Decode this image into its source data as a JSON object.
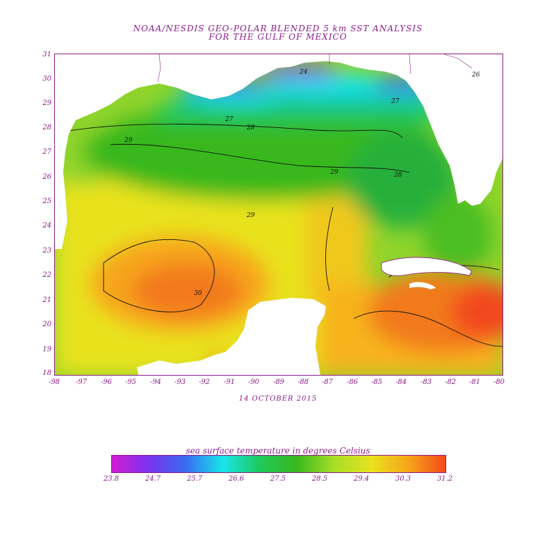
{
  "title_line1": "NOAA/NESDIS GEO-POLAR BLENDED 5 km SST ANALYSIS",
  "title_line2": "FOR THE GULF OF MEXICO",
  "date": "14 OCTOBER 2015",
  "legend_title": "sea surface temperature in degrees Celsius",
  "lat_ticks": [
    "31",
    "30",
    "29",
    "28",
    "27",
    "26",
    "25",
    "24",
    "23",
    "22",
    "21",
    "20",
    "19",
    "18"
  ],
  "lon_ticks": [
    "-98",
    "-97",
    "-96",
    "-95",
    "-94",
    "-93",
    "-92",
    "-91",
    "-90",
    "-89",
    "-88",
    "-87",
    "-86",
    "-85",
    "-84",
    "-83",
    "-82",
    "-81",
    "-80"
  ],
  "colorbar_ticks": [
    "23.8",
    "24.7",
    "25.7",
    "26.6",
    "27.5",
    "28.5",
    "29.4",
    "30.3",
    "31.2"
  ],
  "contour_labels": [
    "24",
    "26",
    "27",
    "27",
    "28",
    "29",
    "29",
    "29",
    "28",
    "30"
  ],
  "colors": {
    "text": "#8b1a89",
    "scale": [
      "#d21ed2",
      "#7a33f0",
      "#3a6cf0",
      "#17e6ea",
      "#1ec85a",
      "#39b81e",
      "#a8de28",
      "#e8e21c",
      "#f7a51a",
      "#f24a1a"
    ]
  }
}
